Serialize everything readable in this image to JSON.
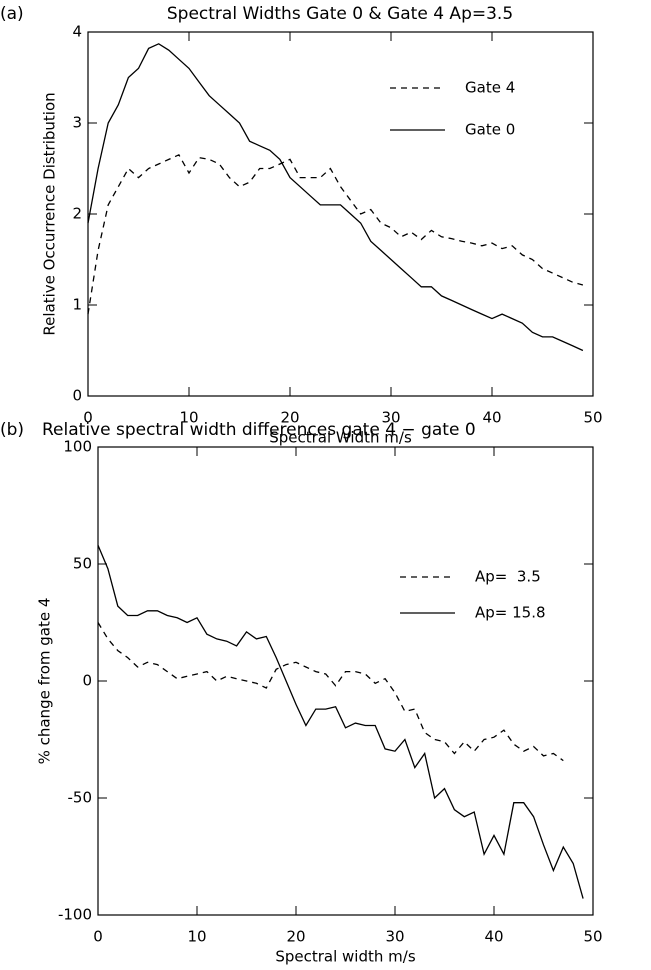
{
  "chart_data": [
    {
      "type": "line",
      "panel": "(a)",
      "title": "Spectral Widths Gate 0 & Gate 4 Ap=3.5",
      "x_label": "Spectral Width m/s",
      "y_label": "Relative Occurrence Distribution",
      "xlim": [
        0,
        50
      ],
      "xticks": [
        0,
        10,
        20,
        30,
        40,
        50
      ],
      "ylim": [
        0,
        4
      ],
      "yticks": [
        0,
        1,
        2,
        3,
        4
      ],
      "series": [
        {
          "name": "Gate 4",
          "color": "#000000",
          "dash": true,
          "x": [
            0,
            1,
            2,
            3,
            4,
            5,
            6,
            7,
            8,
            9,
            10,
            11,
            12,
            13,
            14,
            15,
            16,
            17,
            18,
            19,
            20,
            21,
            22,
            23,
            24,
            25,
            26,
            27,
            28,
            29,
            30,
            31,
            32,
            33,
            34,
            35,
            36,
            37,
            38,
            39,
            40,
            41,
            42,
            43,
            44,
            45,
            46,
            47,
            48,
            49
          ],
          "values": [
            0.9,
            1.6,
            2.1,
            2.3,
            2.5,
            2.4,
            2.5,
            2.55,
            2.6,
            2.65,
            2.45,
            2.62,
            2.6,
            2.55,
            2.4,
            2.3,
            2.35,
            2.5,
            2.5,
            2.55,
            2.6,
            2.4,
            2.4,
            2.4,
            2.5,
            2.3,
            2.15,
            2.0,
            2.05,
            1.9,
            1.85,
            1.75,
            1.8,
            1.72,
            1.82,
            1.75,
            1.73,
            1.7,
            1.68,
            1.65,
            1.68,
            1.62,
            1.65,
            1.55,
            1.5,
            1.4,
            1.35,
            1.3,
            1.25,
            1.22
          ]
        },
        {
          "name": "Gate 0",
          "color": "#000000",
          "dash": false,
          "x": [
            0,
            1,
            2,
            3,
            4,
            5,
            6,
            7,
            8,
            9,
            10,
            11,
            12,
            13,
            14,
            15,
            16,
            17,
            18,
            19,
            20,
            21,
            22,
            23,
            24,
            25,
            26,
            27,
            28,
            29,
            30,
            31,
            32,
            33,
            34,
            35,
            36,
            37,
            38,
            39,
            40,
            41,
            42,
            43,
            44,
            45,
            46,
            47,
            48,
            49
          ],
          "values": [
            1.9,
            2.5,
            3.0,
            3.2,
            3.5,
            3.6,
            3.82,
            3.87,
            3.8,
            3.7,
            3.6,
            3.45,
            3.3,
            3.2,
            3.1,
            3.0,
            2.8,
            2.75,
            2.7,
            2.6,
            2.4,
            2.3,
            2.2,
            2.1,
            2.1,
            2.1,
            2.0,
            1.9,
            1.7,
            1.6,
            1.5,
            1.4,
            1.3,
            1.2,
            1.2,
            1.1,
            1.05,
            1.0,
            0.95,
            0.9,
            0.85,
            0.9,
            0.85,
            0.8,
            0.7,
            0.65,
            0.65,
            0.6,
            0.55,
            0.5
          ]
        }
      ]
    },
    {
      "type": "line",
      "panel": "(b)",
      "title": "Relative spectral width differences gate 4 − gate 0",
      "x_label": "Spectral width m/s",
      "y_label": "% change from gate 4",
      "xlim": [
        0,
        50
      ],
      "xticks": [
        0,
        10,
        20,
        30,
        40,
        50
      ],
      "ylim": [
        -100,
        100
      ],
      "yticks": [
        -100,
        -50,
        0,
        50,
        100
      ],
      "series": [
        {
          "name": "Ap=  3.5",
          "color": "#000000",
          "dash": true,
          "x": [
            0,
            1,
            2,
            3,
            4,
            5,
            6,
            7,
            8,
            9,
            10,
            11,
            12,
            13,
            14,
            15,
            16,
            17,
            18,
            19,
            20,
            21,
            22,
            23,
            24,
            25,
            26,
            27,
            28,
            29,
            30,
            31,
            32,
            33,
            34,
            35,
            36,
            37,
            38,
            39,
            40,
            41,
            42,
            43,
            44,
            45,
            46,
            47
          ],
          "values": [
            25,
            18,
            13,
            10,
            6,
            8,
            7,
            4,
            1,
            2,
            3,
            4,
            0,
            2,
            1,
            0,
            -1,
            -3,
            5,
            7,
            8,
            6,
            4,
            3,
            -2,
            4,
            4,
            3,
            -1,
            1,
            -5,
            -13,
            -12,
            -22,
            -25,
            -26,
            -31,
            -26,
            -30,
            -25,
            -24,
            -21,
            -27,
            -30,
            -28,
            -32,
            -31,
            -34
          ]
        },
        {
          "name": "Ap= 15.8",
          "color": "#000000",
          "dash": false,
          "x": [
            0,
            1,
            2,
            3,
            4,
            5,
            6,
            7,
            8,
            9,
            10,
            11,
            12,
            13,
            14,
            15,
            16,
            17,
            18,
            19,
            20,
            21,
            22,
            23,
            24,
            25,
            26,
            27,
            28,
            29,
            30,
            31,
            32,
            33,
            34,
            35,
            36,
            37,
            38,
            39,
            40,
            41,
            42,
            43,
            44,
            45,
            46,
            47,
            48,
            49
          ],
          "values": [
            58,
            48,
            32,
            28,
            28,
            30,
            30,
            28,
            27,
            25,
            27,
            20,
            18,
            17,
            15,
            21,
            18,
            19,
            10,
            0,
            -10,
            -19,
            -12,
            -12,
            -11,
            -20,
            -18,
            -19,
            -19,
            -29,
            -30,
            -25,
            -37,
            -31,
            -50,
            -46,
            -55,
            -58,
            -56,
            -74,
            -66,
            -74,
            -52,
            -52,
            -58,
            -70,
            -81,
            -71,
            -78,
            -93
          ]
        }
      ]
    }
  ]
}
